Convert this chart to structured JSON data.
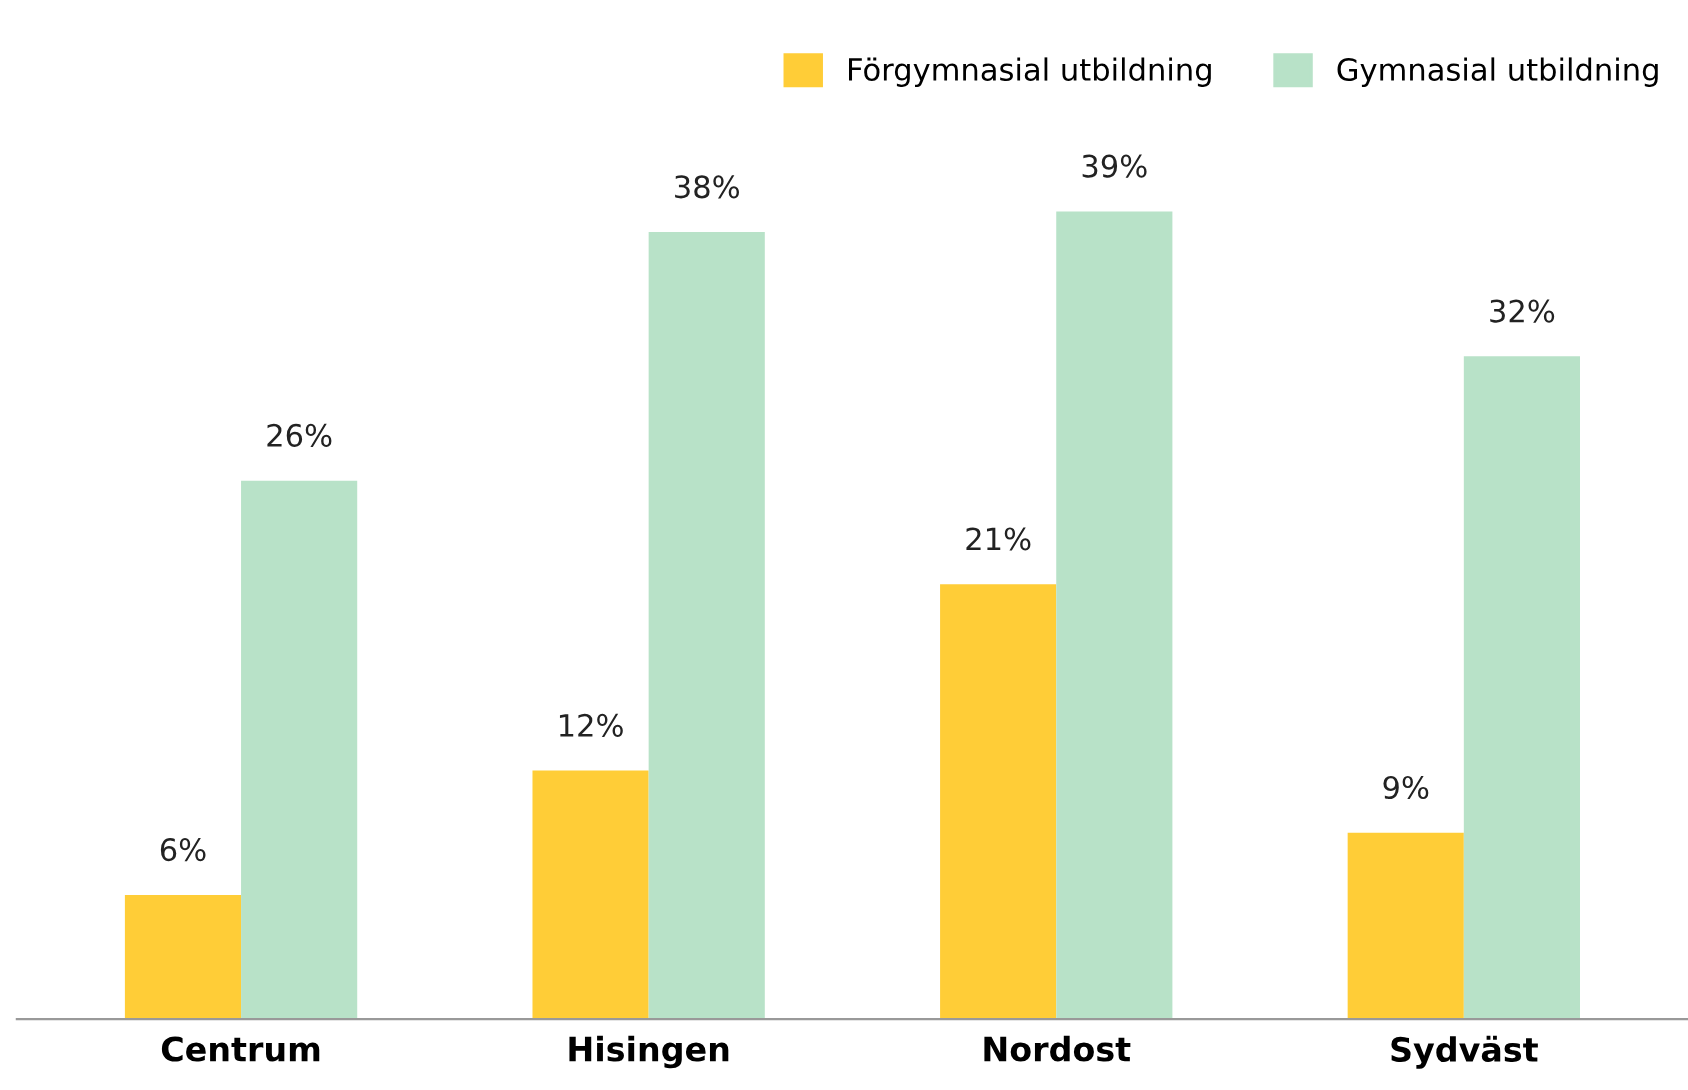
{
  "chart_data": {
    "type": "bar",
    "categories": [
      "Centrum",
      "Hisingen",
      "Nordost",
      "Sydväst"
    ],
    "series": [
      {
        "name": "Förgymnasial utbildning",
        "color": "#ffcd37",
        "values": [
          6,
          12,
          21,
          9
        ],
        "value_labels": [
          "6%",
          "12%",
          "21%",
          "9%"
        ]
      },
      {
        "name": "Gymnasial utbildning",
        "color": "#b8e2c8",
        "values": [
          26,
          38,
          39,
          32
        ],
        "value_labels": [
          "26%",
          "38%",
          "39%",
          "32%"
        ]
      }
    ],
    "legend": "top right",
    "grid": false
  }
}
